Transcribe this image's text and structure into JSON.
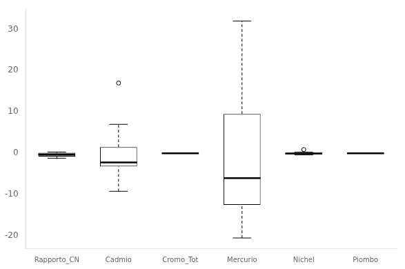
{
  "chart_data": {
    "type": "box",
    "categories": [
      "Rapporto_CN",
      "Cadmio",
      "Cromo_Tot",
      "Mercurio",
      "Nichel",
      "Piombo"
    ],
    "boxes": [
      {
        "q1": -0.8,
        "median": -0.3,
        "q3": 0.1,
        "whislo": -1.2,
        "whishi": 0.3,
        "fliers": [],
        "color": "#999999"
      },
      {
        "q1": -3.2,
        "median": -2.2,
        "q3": 1.5,
        "whislo": -9.2,
        "whishi": 7.0,
        "fliers": [
          17.0
        ],
        "color": "white"
      },
      {
        "q1": -0.02,
        "median": 0.0,
        "q3": 0.02,
        "whislo": -0.02,
        "whishi": 0.02,
        "fliers": [],
        "color": "white"
      },
      {
        "q1": -12.5,
        "median": -6.0,
        "q3": 9.5,
        "whislo": -20.5,
        "whishi": 32.0,
        "fliers": [],
        "color": "white"
      },
      {
        "q1": -0.25,
        "median": -0.05,
        "q3": 0.1,
        "whislo": -0.4,
        "whishi": 0.25,
        "fliers": [
          0.9
        ],
        "color": "white"
      },
      {
        "q1": -0.02,
        "median": 0.0,
        "q3": 0.02,
        "whislo": -0.02,
        "whishi": 0.02,
        "fliers": [],
        "color": "white"
      }
    ],
    "ylim": [
      -23,
      35
    ],
    "yticks": [
      -20,
      -10,
      0,
      10,
      20,
      30
    ],
    "grid": false
  }
}
